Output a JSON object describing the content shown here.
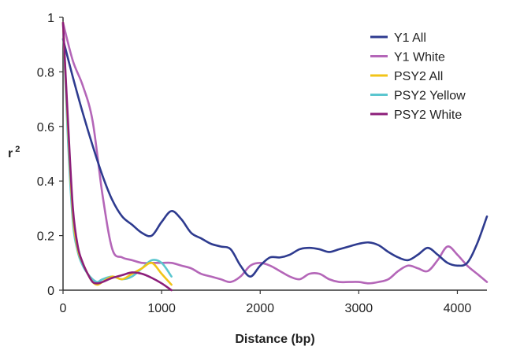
{
  "chart_data": {
    "type": "line",
    "xlabel": "Distance (bp)",
    "ylabel": "r",
    "ylabel_superscript": "2",
    "xlim": [
      0,
      4300
    ],
    "ylim": [
      0,
      1
    ],
    "xticks": [
      0,
      1000,
      2000,
      3000,
      4000
    ],
    "xtick_labels": [
      "0",
      "1000",
      "2000",
      "3000",
      "4000"
    ],
    "yticks": [
      0,
      0.2,
      0.4,
      0.6,
      0.8,
      1
    ],
    "ytick_labels": [
      "0",
      "0.2",
      "0.4",
      "0.6",
      "0.8",
      "1"
    ],
    "grid": false,
    "legend_position": "top-right",
    "series": [
      {
        "name": "Y1 All",
        "color": "#2e3b8f",
        "x": [
          0,
          100,
          200,
          300,
          400,
          500,
          600,
          700,
          800,
          900,
          1000,
          1100,
          1200,
          1300,
          1400,
          1500,
          1600,
          1700,
          1800,
          1900,
          2000,
          2100,
          2200,
          2300,
          2400,
          2500,
          2600,
          2700,
          2800,
          2900,
          3000,
          3100,
          3200,
          3300,
          3400,
          3500,
          3600,
          3700,
          3800,
          3900,
          4000,
          4100,
          4200,
          4300
        ],
        "y": [
          0.92,
          0.78,
          0.65,
          0.53,
          0.42,
          0.33,
          0.27,
          0.24,
          0.21,
          0.2,
          0.25,
          0.29,
          0.26,
          0.21,
          0.19,
          0.17,
          0.16,
          0.15,
          0.09,
          0.05,
          0.09,
          0.12,
          0.12,
          0.13,
          0.15,
          0.155,
          0.15,
          0.14,
          0.15,
          0.16,
          0.17,
          0.175,
          0.165,
          0.14,
          0.12,
          0.11,
          0.13,
          0.155,
          0.13,
          0.1,
          0.09,
          0.1,
          0.17,
          0.27
        ]
      },
      {
        "name": "Y1 White",
        "color": "#b466b8",
        "x": [
          0,
          100,
          200,
          300,
          400,
          500,
          600,
          700,
          800,
          900,
          1000,
          1100,
          1200,
          1300,
          1400,
          1500,
          1600,
          1700,
          1800,
          1900,
          2000,
          2100,
          2200,
          2300,
          2400,
          2500,
          2600,
          2700,
          2800,
          2900,
          3000,
          3100,
          3200,
          3300,
          3400,
          3500,
          3600,
          3700,
          3800,
          3900,
          4000,
          4100,
          4200,
          4300
        ],
        "y": [
          0.98,
          0.84,
          0.75,
          0.62,
          0.35,
          0.15,
          0.12,
          0.11,
          0.1,
          0.1,
          0.1,
          0.1,
          0.09,
          0.08,
          0.06,
          0.05,
          0.04,
          0.03,
          0.05,
          0.09,
          0.1,
          0.09,
          0.07,
          0.05,
          0.04,
          0.06,
          0.06,
          0.04,
          0.03,
          0.03,
          0.03,
          0.025,
          0.03,
          0.04,
          0.07,
          0.09,
          0.08,
          0.07,
          0.11,
          0.16,
          0.13,
          0.09,
          0.06,
          0.03
        ]
      },
      {
        "name": "PSY2 All",
        "color": "#f2c418",
        "x": [
          0,
          50,
          100,
          150,
          200,
          250,
          300,
          350,
          400,
          500,
          600,
          700,
          800,
          900,
          1000,
          1100
        ],
        "y": [
          0.98,
          0.6,
          0.28,
          0.15,
          0.1,
          0.06,
          0.03,
          0.02,
          0.03,
          0.05,
          0.04,
          0.06,
          0.08,
          0.1,
          0.06,
          0.02
        ]
      },
      {
        "name": "PSY2 Yellow",
        "color": "#5bc6cf",
        "x": [
          0,
          50,
          100,
          150,
          200,
          250,
          300,
          350,
          400,
          500,
          600,
          700,
          800,
          900,
          1000,
          1100
        ],
        "y": [
          0.98,
          0.55,
          0.25,
          0.14,
          0.09,
          0.06,
          0.04,
          0.03,
          0.04,
          0.05,
          0.04,
          0.05,
          0.08,
          0.11,
          0.1,
          0.05
        ]
      },
      {
        "name": "PSY2 White",
        "color": "#8c1e7a",
        "x": [
          0,
          50,
          100,
          150,
          200,
          250,
          300,
          350,
          400,
          500,
          600,
          700,
          800,
          900,
          1000,
          1100
        ],
        "y": [
          0.98,
          0.62,
          0.3,
          0.16,
          0.1,
          0.06,
          0.03,
          0.025,
          0.03,
          0.045,
          0.055,
          0.065,
          0.06,
          0.045,
          0.025,
          0.0
        ]
      }
    ]
  }
}
